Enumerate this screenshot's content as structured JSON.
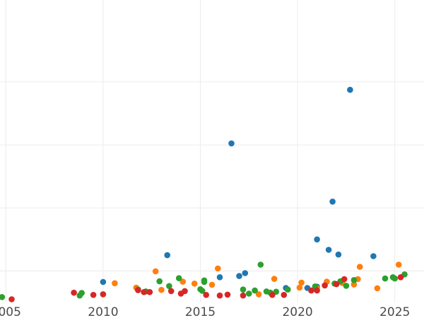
{
  "chart_data": {
    "type": "scatter",
    "title": "",
    "xlabel": "",
    "ylabel": "",
    "grid": true,
    "legend": "none",
    "xlim": [
      2004.7,
      2026.5
    ],
    "ylim": [
      0,
      9.6
    ],
    "x_ticks": [
      2005,
      2010,
      2015,
      2020,
      2025
    ],
    "x_tick_labels": [
      "2005",
      "2010",
      "2015",
      "2020",
      "2025"
    ],
    "y_gridlines": [
      1,
      3,
      5,
      7
    ],
    "series": [
      {
        "color": "#1f77b4",
        "points": [
          [
            2010.0,
            0.65
          ],
          [
            2013.3,
            1.5
          ],
          [
            2016.0,
            0.8
          ],
          [
            2016.6,
            5.05
          ],
          [
            2017.0,
            0.84
          ],
          [
            2017.3,
            0.93
          ],
          [
            2019.4,
            0.46
          ],
          [
            2020.5,
            0.46
          ],
          [
            2021.0,
            2.0
          ],
          [
            2021.0,
            0.5
          ],
          [
            2021.6,
            1.67
          ],
          [
            2021.8,
            3.2
          ],
          [
            2022.1,
            1.52
          ],
          [
            2022.7,
            6.75
          ],
          [
            2023.9,
            1.47
          ]
        ]
      },
      {
        "color": "#ff7f0e",
        "points": [
          [
            2010.6,
            0.61
          ],
          [
            2011.7,
            0.47
          ],
          [
            2012.7,
            0.99
          ],
          [
            2013.0,
            0.4
          ],
          [
            2014.1,
            0.66
          ],
          [
            2014.7,
            0.6
          ],
          [
            2015.6,
            0.56
          ],
          [
            2015.9,
            1.08
          ],
          [
            2018.0,
            0.26
          ],
          [
            2018.8,
            0.75
          ],
          [
            2020.1,
            0.47
          ],
          [
            2020.2,
            0.63
          ],
          [
            2021.0,
            0.46
          ],
          [
            2021.5,
            0.66
          ],
          [
            2022.3,
            0.62
          ],
          [
            2022.9,
            0.57
          ],
          [
            2023.1,
            0.74
          ],
          [
            2023.2,
            1.13
          ],
          [
            2024.1,
            0.45
          ],
          [
            2025.2,
            1.2
          ]
        ]
      },
      {
        "color": "#2ca02c",
        "points": [
          [
            2004.8,
            0.17
          ],
          [
            2008.8,
            0.22
          ],
          [
            2008.9,
            0.3
          ],
          [
            2011.8,
            0.41
          ],
          [
            2012.2,
            0.35
          ],
          [
            2012.9,
            0.67
          ],
          [
            2013.4,
            0.52
          ],
          [
            2013.9,
            0.77
          ],
          [
            2015.0,
            0.42
          ],
          [
            2015.1,
            0.37
          ],
          [
            2015.2,
            0.65
          ],
          [
            2015.2,
            0.7
          ],
          [
            2017.2,
            0.41
          ],
          [
            2017.5,
            0.28
          ],
          [
            2017.8,
            0.38
          ],
          [
            2018.1,
            1.2
          ],
          [
            2018.4,
            0.35
          ],
          [
            2018.6,
            0.31
          ],
          [
            2018.9,
            0.34
          ],
          [
            2019.5,
            0.41
          ],
          [
            2020.9,
            0.51
          ],
          [
            2021.9,
            0.6
          ],
          [
            2022.2,
            0.67
          ],
          [
            2022.5,
            0.53
          ],
          [
            2022.9,
            0.71
          ],
          [
            2024.5,
            0.76
          ],
          [
            2024.9,
            0.8
          ],
          [
            2025.0,
            0.76
          ],
          [
            2025.5,
            0.89
          ]
        ]
      },
      {
        "color": "#d62728",
        "points": [
          [
            2005.3,
            0.1
          ],
          [
            2008.5,
            0.31
          ],
          [
            2009.5,
            0.24
          ],
          [
            2010.0,
            0.26
          ],
          [
            2011.8,
            0.39
          ],
          [
            2012.1,
            0.33
          ],
          [
            2012.4,
            0.33
          ],
          [
            2013.5,
            0.36
          ],
          [
            2014.0,
            0.28
          ],
          [
            2014.2,
            0.36
          ],
          [
            2015.3,
            0.24
          ],
          [
            2016.0,
            0.22
          ],
          [
            2016.4,
            0.25
          ],
          [
            2017.2,
            0.22
          ],
          [
            2018.7,
            0.24
          ],
          [
            2019.3,
            0.24
          ],
          [
            2020.7,
            0.38
          ],
          [
            2021.0,
            0.38
          ],
          [
            2021.4,
            0.54
          ],
          [
            2022.0,
            0.58
          ],
          [
            2022.4,
            0.74
          ],
          [
            2025.3,
            0.8
          ]
        ]
      }
    ]
  }
}
